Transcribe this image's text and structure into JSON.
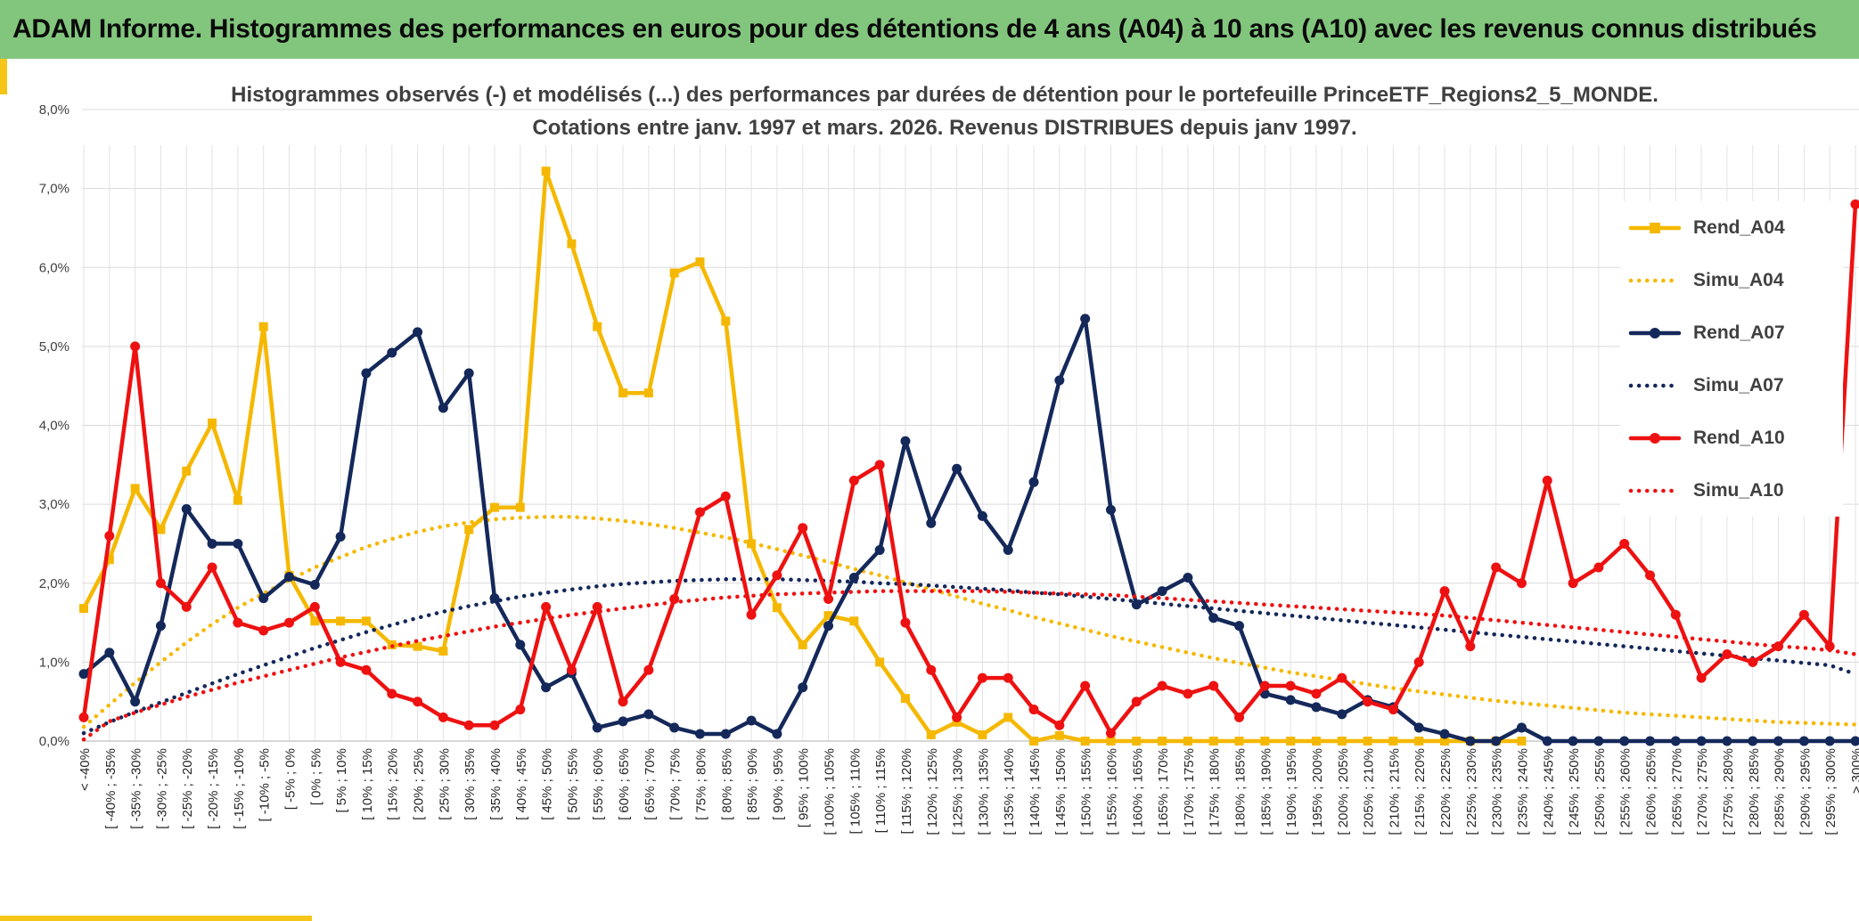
{
  "banner": {
    "title": "ADAM Informe. Histogrammes des performances en euros pour des détentions de 4 ans (A04) à 10 ans (A10) avec les revenus connus distribués"
  },
  "colors": {
    "banner_bg": "#82c67d",
    "A04": "#f5b800",
    "A07": "#14285a",
    "A10": "#ee1111",
    "corner_accent": "#f5c518"
  },
  "chart_data": {
    "type": "line",
    "title_lines": [
      "Histogrammes observés (-) et modélisés (...) des performances par durées de détention pour le portefeuille PrinceETF_Regions2_5_MONDE.",
      "Cotations entre janv. 1997 et mars. 2026. Revenus DISTRIBUES depuis janv 1997."
    ],
    "ylim": [
      0,
      8
    ],
    "y_ticks": [
      "0,0%",
      "1,0%",
      "2,0%",
      "3,0%",
      "4,0%",
      "5,0%",
      "6,0%",
      "7,0%",
      "8,0%"
    ],
    "grid": true,
    "legend_position": "right",
    "categories": [
      "< -40%",
      "[ -40% ; -35%",
      "[ -35% ; -30%",
      "[ -30% ; -25%",
      "[ -25% ; -20%",
      "[ -20% ; -15%",
      "[ -15% ; -10%",
      "[ -10% ; -5%",
      "[ -5% ; 0%",
      "[ 0% ; 5%",
      "[ 5% ; 10%",
      "[ 10% ; 15%",
      "[ 15% ; 20%",
      "[ 20% ; 25%",
      "[ 25% ; 30%",
      "[ 30% ; 35%",
      "[ 35% ; 40%",
      "[ 40% ; 45%",
      "[ 45% ; 50%",
      "[ 50% ; 55%",
      "[ 55% ; 60%",
      "[ 60% ; 65%",
      "[ 65% ; 70%",
      "[ 70% ; 75%",
      "[ 75% ; 80%",
      "[ 80% ; 85%",
      "[ 85% ; 90%",
      "[ 90% ; 95%",
      "[ 95% ; 100%",
      "[ 100% ; 105%",
      "[ 105% ; 110%",
      "[ 110% ; 115%",
      "[ 115% ; 120%",
      "[ 120% ; 125%",
      "[ 125% ; 130%",
      "[ 130% ; 135%",
      "[ 135% ; 140%",
      "[ 140% ; 145%",
      "[ 145% ; 150%",
      "[ 150% ; 155%",
      "[ 155% ; 160%",
      "[ 160% ; 165%",
      "[ 165% ; 170%",
      "[ 170% ; 175%",
      "[ 175% ; 180%",
      "[ 180% ; 185%",
      "[ 185% ; 190%",
      "[ 190% ; 195%",
      "[ 195% ; 200%",
      "[ 200% ; 205%",
      "[ 205% ; 210%",
      "[ 210% ; 215%",
      "[ 215% ; 220%",
      "[ 220% ; 225%",
      "[ 225% ; 230%",
      "[ 230% ; 235%",
      "[ 235% ; 240%",
      "[ 240% ; 245%",
      "[ 245% ; 250%",
      "[ 250% ; 255%",
      "[ 255% ; 260%",
      "[ 260% ; 265%",
      "[ 265% ; 270%",
      "[ 270% ; 275%",
      "[ 275% ; 280%",
      "[ 280% ; 285%",
      "[ 285% ; 290%",
      "[ 290% ; 295%",
      "[ 295% ; 300%",
      "> 300%"
    ],
    "series": [
      {
        "name": "Rend_A04",
        "style": "solid-square",
        "color": "#f5b800",
        "values": [
          1.68,
          2.3,
          3.2,
          2.68,
          3.42,
          4.03,
          3.05,
          5.25,
          2.1,
          1.52,
          1.52,
          1.52,
          1.22,
          1.2,
          1.14,
          2.68,
          2.96,
          2.96,
          7.22,
          6.3,
          5.25,
          4.41,
          4.41,
          5.93,
          6.07,
          5.32,
          2.5,
          1.69,
          1.22,
          1.59,
          1.52,
          1.0,
          0.54,
          0.08,
          0.24,
          0.08,
          0.3,
          0.0,
          0.07,
          0.0,
          0.0,
          0.0,
          0.0,
          0.0,
          0.0,
          0.0,
          0.0,
          0.0,
          0.0,
          0.0,
          0.0,
          0.0,
          0.0,
          0.0,
          0.0,
          0.0,
          0.0,
          null,
          null,
          null,
          null,
          null,
          null,
          null,
          null,
          null,
          null,
          null,
          null,
          null
        ]
      },
      {
        "name": "Simu_A04",
        "style": "dotted",
        "color": "#f5b800",
        "values": [
          0.18,
          0.46,
          0.74,
          1.0,
          1.25,
          1.48,
          1.69,
          1.87,
          2.04,
          2.2,
          2.33,
          2.46,
          2.56,
          2.65,
          2.72,
          2.77,
          2.81,
          2.83,
          2.84,
          2.84,
          2.82,
          2.79,
          2.75,
          2.7,
          2.64,
          2.58,
          2.51,
          2.43,
          2.35,
          2.27,
          2.18,
          2.1,
          2.01,
          1.92,
          1.83,
          1.74,
          1.66,
          1.57,
          1.49,
          1.41,
          1.33,
          1.26,
          1.19,
          1.12,
          1.05,
          0.99,
          0.93,
          0.87,
          0.82,
          0.77,
          0.72,
          0.67,
          0.63,
          0.59,
          0.55,
          0.51,
          0.48,
          0.45,
          0.42,
          0.39,
          0.36,
          0.34,
          0.32,
          0.3,
          0.28,
          0.26,
          0.24,
          0.23,
          0.22,
          0.21
        ]
      },
      {
        "name": "Rend_A07",
        "style": "solid-circle",
        "color": "#14285a",
        "values": [
          0.85,
          1.12,
          0.5,
          1.46,
          2.94,
          2.5,
          2.5,
          1.81,
          2.08,
          1.98,
          2.59,
          4.66,
          4.92,
          5.18,
          4.22,
          4.66,
          1.81,
          1.22,
          0.68,
          0.86,
          0.17,
          0.25,
          0.34,
          0.17,
          0.09,
          0.09,
          0.26,
          0.09,
          0.68,
          1.46,
          2.07,
          2.42,
          3.8,
          2.76,
          3.45,
          2.85,
          2.42,
          3.28,
          4.57,
          5.35,
          2.93,
          1.73,
          1.9,
          2.07,
          1.56,
          1.46,
          0.6,
          0.52,
          0.43,
          0.34,
          0.52,
          0.43,
          0.17,
          0.09,
          0.0,
          0.0,
          0.17,
          0.0,
          0.0,
          0.0,
          0.0,
          0.0,
          0.0,
          0.0,
          0.0,
          0.0,
          0.0,
          0.0,
          0.0,
          0.0
        ]
      },
      {
        "name": "Simu_A07",
        "style": "dotted",
        "color": "#14285a",
        "values": [
          0.1,
          0.24,
          0.37,
          0.49,
          0.61,
          0.73,
          0.85,
          0.96,
          1.07,
          1.18,
          1.28,
          1.38,
          1.47,
          1.56,
          1.64,
          1.71,
          1.77,
          1.83,
          1.88,
          1.92,
          1.96,
          1.99,
          2.01,
          2.03,
          2.04,
          2.05,
          2.05,
          2.05,
          2.04,
          2.03,
          2.02,
          2.0,
          1.99,
          1.97,
          1.95,
          1.93,
          1.91,
          1.88,
          1.86,
          1.83,
          1.8,
          1.77,
          1.74,
          1.71,
          1.68,
          1.65,
          1.62,
          1.59,
          1.56,
          1.53,
          1.5,
          1.47,
          1.44,
          1.41,
          1.38,
          1.35,
          1.32,
          1.29,
          1.26,
          1.23,
          1.2,
          1.17,
          1.14,
          1.11,
          1.08,
          1.05,
          1.02,
          0.99,
          0.96,
          0.85
        ]
      },
      {
        "name": "Rend_A10",
        "style": "solid-circle",
        "color": "#ee1111",
        "values": [
          0.3,
          2.6,
          5.0,
          2.0,
          1.7,
          2.2,
          1.5,
          1.4,
          1.5,
          1.7,
          1.0,
          0.9,
          0.6,
          0.5,
          0.3,
          0.2,
          0.2,
          0.4,
          1.7,
          0.9,
          1.7,
          0.5,
          0.9,
          1.8,
          2.9,
          3.1,
          1.6,
          2.1,
          2.7,
          1.8,
          3.3,
          3.5,
          1.5,
          0.9,
          0.3,
          0.8,
          0.8,
          0.4,
          0.2,
          0.7,
          0.1,
          0.5,
          0.7,
          0.6,
          0.7,
          0.3,
          0.7,
          0.7,
          0.6,
          0.8,
          0.5,
          0.4,
          1.0,
          1.9,
          1.2,
          2.2,
          2.0,
          3.3,
          2.0,
          2.2,
          2.5,
          2.1,
          1.6,
          0.8,
          1.1,
          1.0,
          1.2,
          1.6,
          1.2,
          6.8
        ]
      },
      {
        "name": "Simu_A10",
        "style": "dotted",
        "color": "#ee1111",
        "values": [
          0.02,
          0.25,
          0.36,
          0.46,
          0.56,
          0.65,
          0.74,
          0.82,
          0.9,
          0.98,
          1.06,
          1.13,
          1.2,
          1.27,
          1.33,
          1.39,
          1.45,
          1.5,
          1.55,
          1.6,
          1.64,
          1.68,
          1.72,
          1.76,
          1.79,
          1.82,
          1.84,
          1.86,
          1.87,
          1.88,
          1.89,
          1.9,
          1.9,
          1.9,
          1.9,
          1.9,
          1.89,
          1.88,
          1.87,
          1.86,
          1.85,
          1.83,
          1.81,
          1.79,
          1.77,
          1.75,
          1.73,
          1.71,
          1.69,
          1.67,
          1.65,
          1.63,
          1.61,
          1.59,
          1.56,
          1.53,
          1.5,
          1.47,
          1.44,
          1.41,
          1.38,
          1.35,
          1.32,
          1.29,
          1.26,
          1.23,
          1.2,
          1.18,
          1.15,
          1.1
        ]
      }
    ]
  }
}
